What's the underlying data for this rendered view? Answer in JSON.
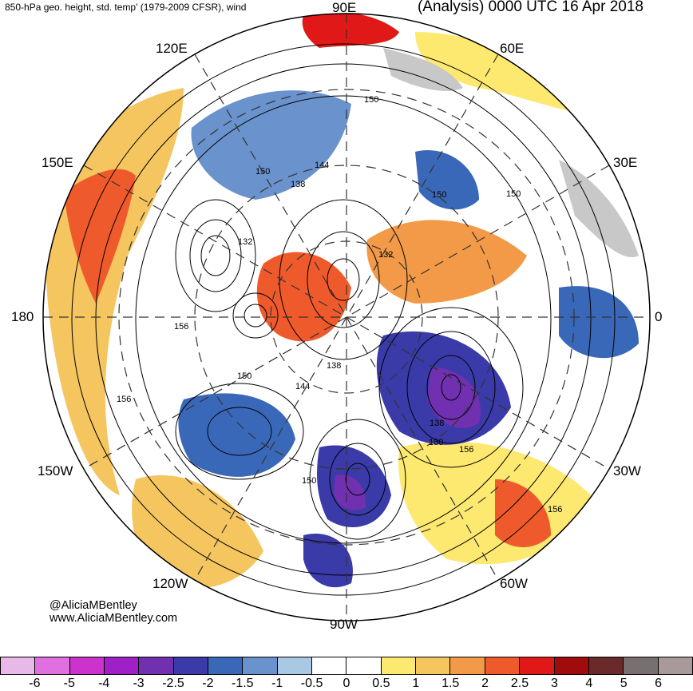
{
  "header": {
    "title_left": "850-hPa geo. height, std. temp' (1979-2009 CFSR), wind",
    "title_right": "(Analysis) 0000 UTC 16 Apr 2018"
  },
  "longitude_labels": {
    "e90": "90E",
    "e60": "60E",
    "e30": "30E",
    "zero": "0",
    "w30": "30W",
    "w60": "60W",
    "w90": "90W",
    "w120": "120W",
    "w150": "150W",
    "d180": "180",
    "e150": "150E",
    "e120": "120E"
  },
  "contour_labels": [
    "150",
    "144",
    "138",
    "150",
    "150",
    "132",
    "132",
    "156",
    "150",
    "156",
    "150",
    "138",
    "144",
    "138",
    "150",
    "156",
    "150",
    "156"
  ],
  "credits": {
    "handle": "@AliciaMBentley",
    "website": "www.AliciaMBentley.com"
  },
  "colorbar": {
    "colors": [
      "#e8b8e8",
      "#e070e0",
      "#cc33cc",
      "#a020c8",
      "#7030b0",
      "#3a3aa8",
      "#3a68b8",
      "#6a92cc",
      "#a8c8e4",
      "#ffffff",
      "#ffffff",
      "#fde870",
      "#f5c560",
      "#f39a48",
      "#ef5a2c",
      "#e01818",
      "#a00c0c",
      "#6a2a2a",
      "#787070",
      "#a89a9a"
    ],
    "ticks": [
      "-6",
      "-5",
      "-4",
      "-3",
      "-2.5",
      "-2",
      "-1.5",
      "-1",
      "-0.5",
      "0",
      "0.5",
      "1",
      "1.5",
      "2",
      "2.5",
      "3",
      "4",
      "5",
      "6"
    ]
  }
}
